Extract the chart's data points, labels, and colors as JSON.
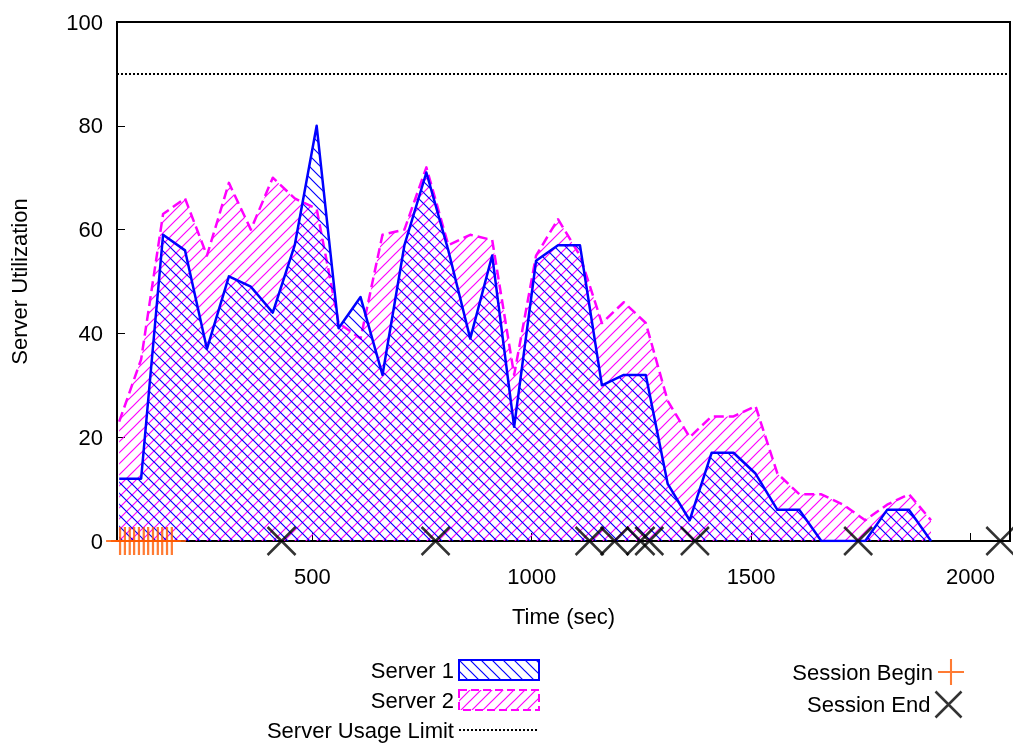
{
  "chart_data": {
    "type": "area",
    "xlabel": "Time (sec)",
    "ylabel": "Server Utilization",
    "xlim": [
      55,
      2090
    ],
    "xticks": [
      500,
      1000,
      1500,
      2000
    ],
    "ylim": [
      0,
      100
    ],
    "yticks": [
      0,
      20,
      40,
      60,
      80,
      100
    ],
    "legend": "bottom",
    "x": [
      60,
      110,
      160,
      210,
      260,
      310,
      360,
      410,
      460,
      510,
      560,
      610,
      660,
      710,
      760,
      810,
      860,
      910,
      960,
      1010,
      1060,
      1110,
      1160,
      1210,
      1260,
      1310,
      1360,
      1410,
      1460,
      1510,
      1560,
      1610,
      1660,
      1710,
      1760,
      1810,
      1860,
      1910
    ],
    "series": [
      {
        "name": "Server 1",
        "color": "#0000ff",
        "line_style": "solid",
        "values": [
          12,
          12,
          59,
          56,
          37,
          51,
          49,
          44,
          57,
          80,
          41,
          47,
          32,
          57,
          71,
          56,
          39,
          55,
          22,
          54,
          57,
          57,
          30,
          32,
          32,
          11,
          4,
          17,
          17,
          13,
          6,
          6,
          0,
          0,
          0,
          6,
          6,
          0
        ]
      },
      {
        "name": "Server 2",
        "color": "#ff00ff",
        "line_style": "dashed",
        "values": [
          23,
          35,
          63,
          66,
          55,
          69,
          60,
          70,
          66,
          64,
          42,
          39,
          59,
          60,
          72,
          57,
          59,
          58,
          32,
          55,
          62,
          55,
          42,
          46,
          42,
          27,
          20,
          24,
          24,
          26,
          13,
          9,
          9,
          7,
          4,
          7,
          9,
          4
        ]
      },
      {
        "type": "scatter",
        "name": "Session Begin",
        "color": "#ff5a00",
        "x": [
          62,
          73,
          84,
          94,
          105,
          116,
          126,
          137,
          148,
          158,
          169,
          180
        ],
        "values": [
          0,
          0,
          0,
          0,
          0,
          0,
          0,
          0,
          0,
          0,
          0,
          0
        ]
      },
      {
        "type": "scatter",
        "name": "Session End",
        "color": "#000000",
        "marker": "cross",
        "x": [
          430,
          781,
          1132,
          1189,
          1248,
          1268,
          1372,
          1744,
          2068
        ],
        "values": [
          0,
          0,
          0,
          0,
          0,
          0,
          0,
          0,
          0
        ]
      }
    ],
    "ref_lines": [
      {
        "axis": "y",
        "value": 90,
        "label": "Server Usage Limit",
        "color": "#000000",
        "line_style": "dotted"
      }
    ]
  }
}
